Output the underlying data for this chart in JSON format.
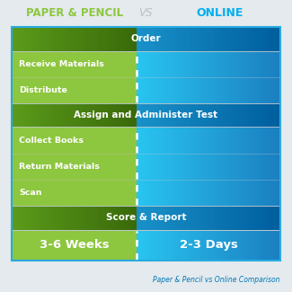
{
  "title_left": "PAPER & PENCIL",
  "title_vs": "VS",
  "title_right": "ONLINE",
  "title_left_color": "#8dc63f",
  "title_vs_color": "#b8bfc6",
  "title_right_color": "#00aeef",
  "footer": "Paper & Pencil vs Online Comparison",
  "footer_color": "#0077b6",
  "bg_color": "#e4eaed",
  "border_color": "#29aae1",
  "left_col_color": "#8dc63f",
  "right_col_bright": "#29c4f0",
  "right_col_dark": "#1a7fc0",
  "header_left_bright": "#5a9a1a",
  "header_left_dark": "#3a6a0a",
  "header_right_bright": "#1890c8",
  "header_right_dark": "#005f9e",
  "rows": [
    {
      "type": "header",
      "text": "Order"
    },
    {
      "type": "item",
      "text": "Receive Materials"
    },
    {
      "type": "item",
      "text": "Distribute"
    },
    {
      "type": "header",
      "text": "Assign and Administer Test"
    },
    {
      "type": "item",
      "text": "Collect Books"
    },
    {
      "type": "item",
      "text": "Return Materials"
    },
    {
      "type": "item",
      "text": "Scan"
    },
    {
      "type": "header",
      "text": "Score & Report"
    },
    {
      "type": "footer_row",
      "left_text": "3-6 Weeks",
      "right_text": "2-3 Days"
    }
  ],
  "row_heights": [
    1.0,
    1.1,
    1.1,
    1.0,
    1.1,
    1.1,
    1.1,
    1.0,
    1.3
  ]
}
